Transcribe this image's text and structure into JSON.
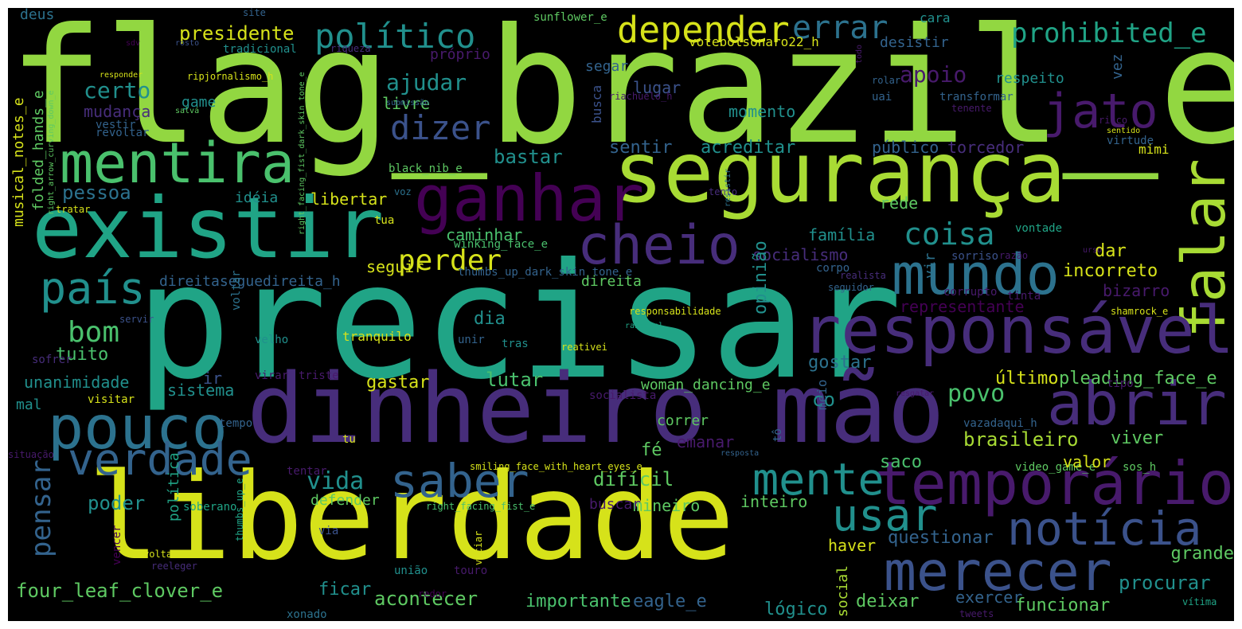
{
  "words": [
    "flag_brazil_e",
    "precisar",
    "segurança",
    "existir",
    "liberdade",
    "dinheiro",
    "mão",
    "mentira",
    "ganhar",
    "falar",
    "responsável",
    "pouco",
    "temporário",
    "cheio",
    "mundo",
    "abrir",
    "verdade",
    "saber",
    "notícia",
    "merecer",
    "mente",
    "usar",
    "país",
    "jato",
    "dizer",
    "depender",
    "errar",
    "político",
    "prohibited_e",
    "coisa",
    "perder",
    "bom",
    "presidente",
    "certo",
    "ajudar",
    "apoio",
    "bastar",
    "pessoa",
    "sentir",
    "acreditar",
    "público",
    "torcedor",
    "mimi",
    "família",
    "socialismo",
    "caminhar",
    "lutar",
    "sistema",
    "gostar",
    "brasileiro",
    "viver",
    "povo",
    "dia",
    "fé",
    "emanar",
    "difícil",
    "vida",
    "poder",
    "pensar",
    "tuito",
    "unanimidade",
    "four_leaf_clover_e",
    "acontecer",
    "importante",
    "eagle_e",
    "deixar",
    "funcionar",
    "procurar",
    "grande",
    "incorreto",
    "dar",
    "representante",
    "opinião",
    "gastar",
    "woman_dancing_e",
    "último",
    "pleading_face_e",
    "mineiro",
    "inteiro",
    "questionar",
    "haver",
    "ficar",
    "lógico",
    "exercer",
    "libertar",
    "seguir",
    "rede",
    "idéia",
    "ir",
    "musical_notes_e",
    "folded_hands_e",
    "mudança",
    "game",
    "livre",
    "momento",
    "lugar",
    "busca",
    "segar",
    "próprio",
    "desistir",
    "respeito",
    "vez",
    "votebolsonaro22_h",
    "sunflower_e",
    "cara",
    "deus",
    "site",
    "sdv",
    "rosto",
    "tradicional",
    "ripjornalismo_h",
    "responder",
    "salvá",
    "riqueza",
    "submissão",
    "riachuelo_h",
    "transformar",
    "uai",
    "tenente",
    "todo",
    "rolar",
    "risco",
    "sentido",
    "virtude",
    "vestir",
    "revoltar",
    "right_arrow_curving_down_e",
    "black_nib_e",
    "voz",
    "tua",
    "tento",
    "resistir",
    "right_facing_fist_dark_skin_tone_e",
    "winking_face_e",
    "thumbs_up_dark_skin_tone_e",
    "direita",
    "direitaseguedireita_h",
    "corpo",
    "corrupto",
    "vir",
    "vontade",
    "urso",
    "razão",
    "sorriso",
    "realista",
    "seguidor",
    "responsabilidade",
    "razoável",
    "tinta",
    "bizarro",
    "shamrock_e",
    "servir",
    "voltar",
    "sofrer",
    "velho",
    "tranquilo",
    "unir",
    "tras",
    "reativei",
    "virar",
    "triste",
    "co",
    "visitar",
    "mal",
    "socialista",
    "resgatar",
    "meio",
    "tipo",
    "tempo",
    "correr",
    "vazadaqui_h",
    "tu",
    "tô",
    "situação",
    "resposta",
    "tentar",
    "smiling_face_with_heart_eyes_e",
    "video_game_e",
    "valor",
    "sos_h",
    "saco",
    "política",
    "soberano",
    "defender",
    "right_facing_fist_e",
    "buscar",
    "thumbs_up_e",
    "vencer",
    "volta",
    "via",
    "viciar",
    "reeleger",
    "união",
    "touro",
    "social",
    "redor",
    "xonado",
    "tweets",
    "vítima",
    "tratar"
  ],
  "colors": {
    "background": "#000000",
    "yellow": "#d6e21a",
    "yellow_green": "#a8db34",
    "lime": "#92d741",
    "green": "#5ec962",
    "sea_green": "#4ac16d",
    "teal": "#20a486",
    "teal_blue": "#21908d",
    "blue": "#2c728e",
    "steel": "#33638d",
    "indigo": "#3b528b",
    "violet": "#472d7b",
    "purple": "#481a6c",
    "dark_purple": "#440154"
  }
}
